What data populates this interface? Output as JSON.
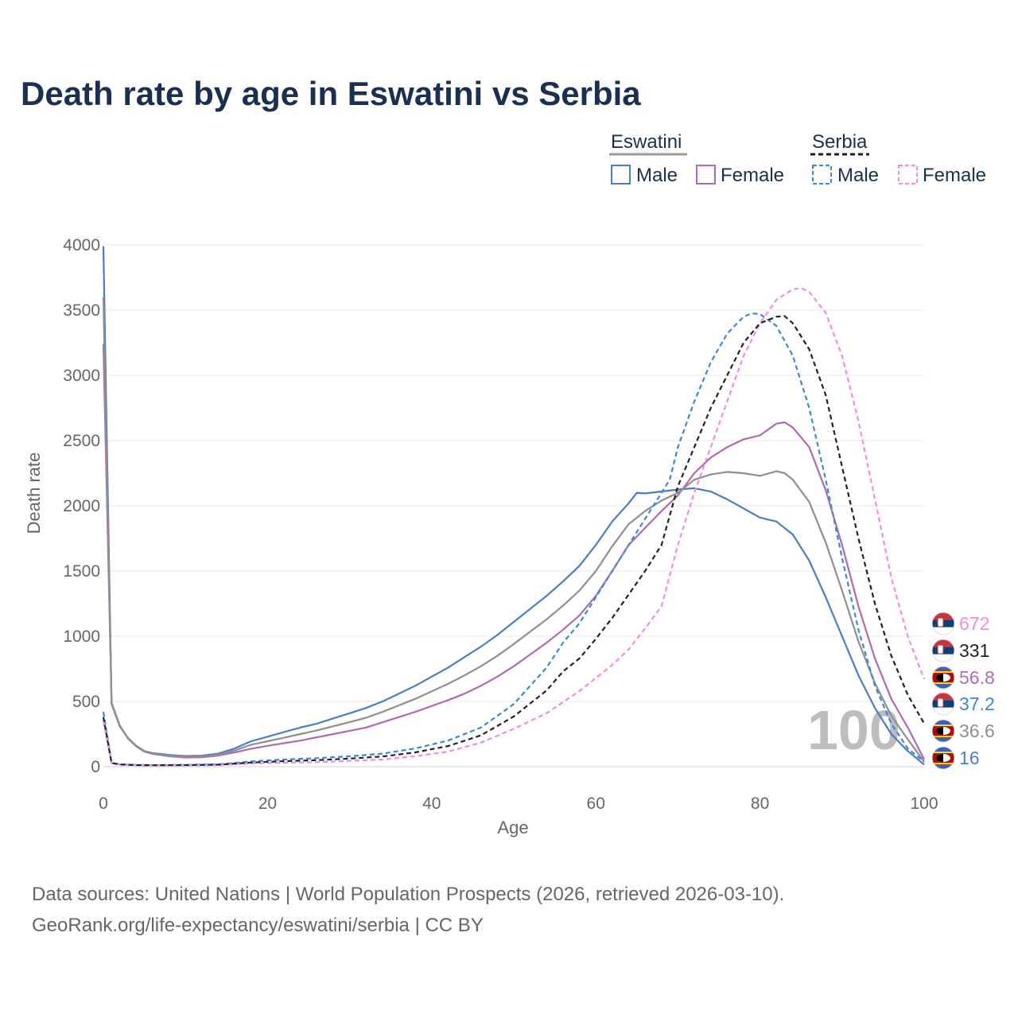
{
  "chart_data": {
    "type": "line",
    "title": "Death rate by age in Eswatini vs Serbia",
    "xlabel": "Age",
    "ylabel": "Death rate",
    "xlim": [
      0,
      100
    ],
    "ylim": [
      0,
      4000
    ],
    "x_ticks": [
      "0",
      "20",
      "40",
      "60",
      "80",
      "100"
    ],
    "y_ticks": [
      "0",
      "500",
      "1000",
      "1500",
      "2000",
      "2500",
      "3000",
      "3500",
      "4000"
    ],
    "watermark": "100",
    "legend": {
      "groups": [
        {
          "name": "Eswatini",
          "color": "#999999",
          "dash": false,
          "items": [
            "Male",
            "Female"
          ]
        },
        {
          "name": "Serbia",
          "color": "#222222",
          "dash": true,
          "items": [
            "Male",
            "Female"
          ]
        }
      ]
    },
    "series": [
      {
        "name": "Eswatini Male",
        "color": "#4a7cc7",
        "dash": false,
        "end_label": "16",
        "points": [
          [
            0,
            3990
          ],
          [
            1,
            480
          ],
          [
            2,
            310
          ],
          [
            3,
            220
          ],
          [
            4,
            160
          ],
          [
            5,
            120
          ],
          [
            6,
            105
          ],
          [
            8,
            90
          ],
          [
            10,
            82
          ],
          [
            12,
            85
          ],
          [
            14,
            100
          ],
          [
            16,
            140
          ],
          [
            18,
            195
          ],
          [
            20,
            230
          ],
          [
            22,
            265
          ],
          [
            24,
            300
          ],
          [
            26,
            330
          ],
          [
            28,
            370
          ],
          [
            30,
            410
          ],
          [
            32,
            450
          ],
          [
            34,
            500
          ],
          [
            36,
            560
          ],
          [
            38,
            620
          ],
          [
            40,
            690
          ],
          [
            42,
            760
          ],
          [
            44,
            840
          ],
          [
            46,
            920
          ],
          [
            48,
            1010
          ],
          [
            50,
            1110
          ],
          [
            52,
            1210
          ],
          [
            54,
            1310
          ],
          [
            56,
            1420
          ],
          [
            58,
            1540
          ],
          [
            60,
            1700
          ],
          [
            62,
            1880
          ],
          [
            64,
            2020
          ],
          [
            65,
            2100
          ],
          [
            66,
            2095
          ],
          [
            68,
            2110
          ],
          [
            70,
            2125
          ],
          [
            72,
            2135
          ],
          [
            74,
            2110
          ],
          [
            76,
            2050
          ],
          [
            78,
            1980
          ],
          [
            80,
            1910
          ],
          [
            82,
            1880
          ],
          [
            84,
            1780
          ],
          [
            86,
            1580
          ],
          [
            88,
            1300
          ],
          [
            90,
            1000
          ],
          [
            92,
            700
          ],
          [
            94,
            450
          ],
          [
            96,
            250
          ],
          [
            98,
            120
          ],
          [
            100,
            16
          ]
        ]
      },
      {
        "name": "Eswatini Female",
        "color": "#b06bb0",
        "dash": false,
        "end_label": "56.8",
        "points": [
          [
            0,
            3240
          ],
          [
            1,
            490
          ],
          [
            2,
            315
          ],
          [
            3,
            215
          ],
          [
            4,
            155
          ],
          [
            5,
            115
          ],
          [
            6,
            98
          ],
          [
            8,
            80
          ],
          [
            10,
            70
          ],
          [
            12,
            72
          ],
          [
            14,
            85
          ],
          [
            16,
            110
          ],
          [
            18,
            138
          ],
          [
            20,
            160
          ],
          [
            22,
            180
          ],
          [
            24,
            200
          ],
          [
            26,
            225
          ],
          [
            28,
            250
          ],
          [
            30,
            275
          ],
          [
            32,
            300
          ],
          [
            34,
            340
          ],
          [
            36,
            380
          ],
          [
            38,
            420
          ],
          [
            40,
            465
          ],
          [
            42,
            510
          ],
          [
            44,
            560
          ],
          [
            46,
            620
          ],
          [
            48,
            690
          ],
          [
            50,
            770
          ],
          [
            52,
            860
          ],
          [
            54,
            950
          ],
          [
            56,
            1050
          ],
          [
            58,
            1160
          ],
          [
            60,
            1310
          ],
          [
            62,
            1500
          ],
          [
            64,
            1700
          ],
          [
            66,
            1830
          ],
          [
            68,
            1960
          ],
          [
            70,
            2080
          ],
          [
            72,
            2250
          ],
          [
            74,
            2370
          ],
          [
            76,
            2450
          ],
          [
            78,
            2510
          ],
          [
            80,
            2540
          ],
          [
            82,
            2630
          ],
          [
            83,
            2640
          ],
          [
            84,
            2600
          ],
          [
            86,
            2450
          ],
          [
            88,
            2120
          ],
          [
            90,
            1700
          ],
          [
            92,
            1230
          ],
          [
            94,
            830
          ],
          [
            96,
            520
          ],
          [
            98,
            300
          ],
          [
            100,
            57
          ]
        ]
      },
      {
        "name": "Eswatini Total",
        "color": "#8f8f8f",
        "dash": false,
        "end_label": "36.6",
        "points": [
          [
            0,
            3600
          ],
          [
            1,
            485
          ],
          [
            2,
            312
          ],
          [
            3,
            218
          ],
          [
            4,
            158
          ],
          [
            5,
            118
          ],
          [
            6,
            102
          ],
          [
            8,
            85
          ],
          [
            10,
            76
          ],
          [
            12,
            78
          ],
          [
            14,
            92
          ],
          [
            16,
            125
          ],
          [
            18,
            168
          ],
          [
            20,
            195
          ],
          [
            22,
            222
          ],
          [
            24,
            250
          ],
          [
            26,
            278
          ],
          [
            28,
            310
          ],
          [
            30,
            342
          ],
          [
            32,
            375
          ],
          [
            34,
            420
          ],
          [
            36,
            470
          ],
          [
            38,
            520
          ],
          [
            40,
            578
          ],
          [
            42,
            635
          ],
          [
            44,
            700
          ],
          [
            46,
            770
          ],
          [
            48,
            850
          ],
          [
            50,
            940
          ],
          [
            52,
            1035
          ],
          [
            54,
            1130
          ],
          [
            56,
            1235
          ],
          [
            58,
            1350
          ],
          [
            60,
            1500
          ],
          [
            62,
            1690
          ],
          [
            64,
            1860
          ],
          [
            66,
            1960
          ],
          [
            68,
            2040
          ],
          [
            70,
            2100
          ],
          [
            72,
            2200
          ],
          [
            74,
            2240
          ],
          [
            76,
            2260
          ],
          [
            78,
            2250
          ],
          [
            80,
            2230
          ],
          [
            82,
            2265
          ],
          [
            83,
            2250
          ],
          [
            84,
            2200
          ],
          [
            86,
            2030
          ],
          [
            88,
            1720
          ],
          [
            90,
            1350
          ],
          [
            92,
            960
          ],
          [
            94,
            640
          ],
          [
            96,
            390
          ],
          [
            98,
            210
          ],
          [
            100,
            37
          ]
        ]
      },
      {
        "name": "Serbia Male",
        "color": "#3b87e0",
        "dash": true,
        "end_label": "37.2",
        "points": [
          [
            0,
            420
          ],
          [
            1,
            30
          ],
          [
            2,
            18
          ],
          [
            4,
            14
          ],
          [
            6,
            12
          ],
          [
            10,
            14
          ],
          [
            14,
            18
          ],
          [
            18,
            40
          ],
          [
            22,
            55
          ],
          [
            26,
            65
          ],
          [
            30,
            80
          ],
          [
            34,
            100
          ],
          [
            38,
            140
          ],
          [
            42,
            200
          ],
          [
            46,
            300
          ],
          [
            50,
            480
          ],
          [
            54,
            760
          ],
          [
            56,
            950
          ],
          [
            58,
            1100
          ],
          [
            60,
            1300
          ],
          [
            62,
            1500
          ],
          [
            64,
            1700
          ],
          [
            66,
            1900
          ],
          [
            68,
            2100
          ],
          [
            69,
            2200
          ],
          [
            70,
            2450
          ],
          [
            72,
            2800
          ],
          [
            74,
            3100
          ],
          [
            76,
            3320
          ],
          [
            78,
            3450
          ],
          [
            79,
            3475
          ],
          [
            80,
            3470
          ],
          [
            82,
            3380
          ],
          [
            84,
            3150
          ],
          [
            86,
            2750
          ],
          [
            88,
            2200
          ],
          [
            90,
            1600
          ],
          [
            92,
            1050
          ],
          [
            94,
            620
          ],
          [
            96,
            330
          ],
          [
            98,
            140
          ],
          [
            100,
            37
          ]
        ]
      },
      {
        "name": "Serbia Female",
        "color": "#f28ce0",
        "dash": true,
        "end_label": "672",
        "points": [
          [
            0,
            350
          ],
          [
            1,
            26
          ],
          [
            2,
            15
          ],
          [
            4,
            11
          ],
          [
            6,
            9
          ],
          [
            10,
            10
          ],
          [
            14,
            12
          ],
          [
            18,
            25
          ],
          [
            22,
            30
          ],
          [
            26,
            35
          ],
          [
            30,
            45
          ],
          [
            34,
            55
          ],
          [
            38,
            80
          ],
          [
            42,
            115
          ],
          [
            46,
            185
          ],
          [
            50,
            290
          ],
          [
            54,
            410
          ],
          [
            58,
            580
          ],
          [
            62,
            780
          ],
          [
            64,
            900
          ],
          [
            66,
            1060
          ],
          [
            68,
            1230
          ],
          [
            70,
            1700
          ],
          [
            72,
            2100
          ],
          [
            74,
            2450
          ],
          [
            76,
            2800
          ],
          [
            78,
            3150
          ],
          [
            80,
            3400
          ],
          [
            82,
            3580
          ],
          [
            84,
            3660
          ],
          [
            85,
            3670
          ],
          [
            86,
            3640
          ],
          [
            88,
            3480
          ],
          [
            90,
            3150
          ],
          [
            92,
            2650
          ],
          [
            94,
            2050
          ],
          [
            96,
            1450
          ],
          [
            98,
            1000
          ],
          [
            100,
            672
          ]
        ]
      },
      {
        "name": "Serbia Total",
        "color": "#222222",
        "dash": true,
        "end_label": "331",
        "points": [
          [
            0,
            380
          ],
          [
            1,
            28
          ],
          [
            2,
            17
          ],
          [
            4,
            12
          ],
          [
            6,
            11
          ],
          [
            10,
            12
          ],
          [
            14,
            15
          ],
          [
            18,
            32
          ],
          [
            22,
            42
          ],
          [
            26,
            50
          ],
          [
            30,
            62
          ],
          [
            34,
            78
          ],
          [
            38,
            110
          ],
          [
            42,
            158
          ],
          [
            46,
            240
          ],
          [
            50,
            385
          ],
          [
            54,
            585
          ],
          [
            56,
            730
          ],
          [
            58,
            830
          ],
          [
            60,
            980
          ],
          [
            62,
            1140
          ],
          [
            64,
            1320
          ],
          [
            66,
            1500
          ],
          [
            68,
            1700
          ],
          [
            70,
            2150
          ],
          [
            72,
            2450
          ],
          [
            74,
            2750
          ],
          [
            76,
            3000
          ],
          [
            78,
            3250
          ],
          [
            80,
            3400
          ],
          [
            82,
            3450
          ],
          [
            83,
            3455
          ],
          [
            84,
            3400
          ],
          [
            86,
            3200
          ],
          [
            88,
            2850
          ],
          [
            90,
            2300
          ],
          [
            92,
            1750
          ],
          [
            94,
            1250
          ],
          [
            96,
            850
          ],
          [
            98,
            550
          ],
          [
            100,
            331
          ]
        ]
      }
    ],
    "end_labels_order": [
      "672",
      "331",
      "56.8",
      "37.2",
      "36.6",
      "16"
    ]
  },
  "source": {
    "line1": "Data sources: United Nations | World Population Prospects (2026, retrieved 2026-03-10).",
    "line2": "GeoRank.org/life-expectancy/eswatini/serbia | CC BY"
  }
}
